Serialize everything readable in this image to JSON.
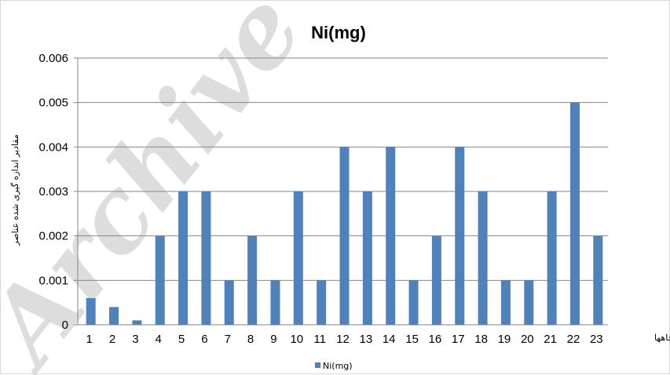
{
  "watermark": "Archive of SID",
  "chart_data": {
    "type": "bar",
    "title": "Ni(mg)",
    "xlabel": "چاهها",
    "ylabel": "مقادیر اندازه گیری شده عناصر",
    "categories": [
      "1",
      "2",
      "3",
      "4",
      "5",
      "6",
      "7",
      "8",
      "9",
      "10",
      "11",
      "12",
      "13",
      "14",
      "15",
      "16",
      "17",
      "18",
      "19",
      "20",
      "21",
      "22",
      "23"
    ],
    "series": [
      {
        "name": "Ni(mg)",
        "color": "#4f81bd",
        "values": [
          0.0006,
          0.0004,
          0.0001,
          0.002,
          0.003,
          0.003,
          0.001,
          0.002,
          0.001,
          0.003,
          0.001,
          0.004,
          0.003,
          0.004,
          0.001,
          0.002,
          0.004,
          0.003,
          0.001,
          0.001,
          0.003,
          0.005,
          0.002
        ]
      }
    ],
    "ylim": [
      0,
      0.006
    ],
    "yticks": [
      "0",
      "0.001",
      "0.002",
      "0.003",
      "0.004",
      "0.005",
      "0.006"
    ],
    "grid": true,
    "legend_position": "bottom"
  }
}
